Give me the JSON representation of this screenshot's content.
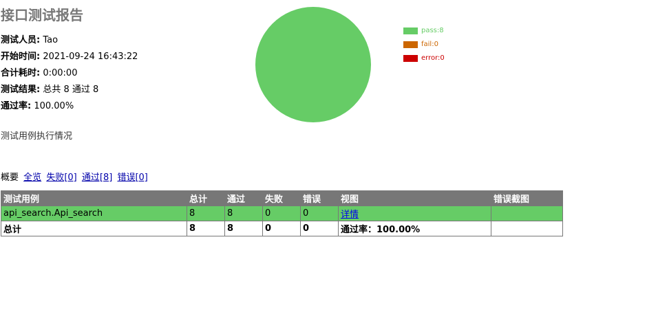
{
  "report": {
    "title": "接口测试报告",
    "attributes": [
      {
        "label": "测试人员:",
        "value": "Tao"
      },
      {
        "label": "开始时间:",
        "value": "2021-09-24 16:43:22"
      },
      {
        "label": "合计耗时:",
        "value": "0:00:00"
      },
      {
        "label": "测试结果:",
        "value": "总共 8 通过 8"
      },
      {
        "label": "通过率:",
        "value": "100.00%"
      }
    ],
    "description": "测试用例执行情况"
  },
  "chart_data": {
    "type": "pie",
    "categories": [
      "pass:8",
      "fail:0",
      "error:0"
    ],
    "values": [
      8,
      0,
      0
    ],
    "colors": [
      "#66cc66",
      "#cc6600",
      "#cc0000"
    ],
    "legend_position": "right"
  },
  "filter": {
    "label": "概要",
    "links": [
      "全览",
      "失败[0]",
      "通过[8]",
      "错误[0]"
    ]
  },
  "table": {
    "headers": [
      "测试用例",
      "总计",
      "通过",
      "失败",
      "错误",
      "视图",
      "错误截图"
    ],
    "rows": [
      {
        "name": "api_search.Api_search",
        "total": "8",
        "pass": "8",
        "fail": "0",
        "error": "0",
        "view": "详情",
        "screenshot": ""
      }
    ],
    "total_row": {
      "name": "总计",
      "total": "8",
      "pass": "8",
      "fail": "0",
      "error": "0",
      "rate": "通过率：100.00%",
      "screenshot": ""
    }
  }
}
